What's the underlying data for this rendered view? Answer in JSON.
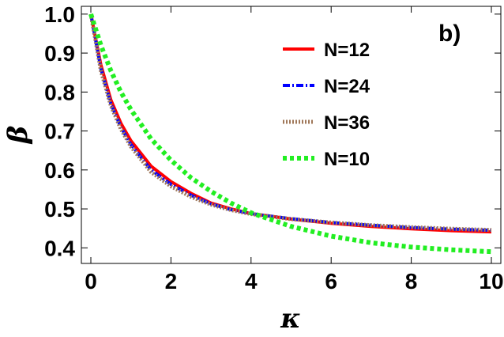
{
  "chart_data": {
    "type": "line",
    "panel_label": "b)",
    "xlabel": "κ",
    "ylabel": "β",
    "xlim": [
      0,
      10
    ],
    "ylim": [
      0.36,
      1.02
    ],
    "x_ticks": [
      0,
      2,
      4,
      6,
      8,
      10
    ],
    "x_tick_labels": [
      "0",
      "2",
      "4",
      "6",
      "8",
      "10"
    ],
    "y_ticks": [
      0.4,
      0.5,
      0.6,
      0.7,
      0.8,
      0.9,
      1.0
    ],
    "y_tick_labels": [
      "0.4",
      "0.5",
      "0.6",
      "0.7",
      "0.8",
      "0.9",
      "1.0"
    ],
    "grid": false,
    "legend_position": "top-right",
    "x": [
      0,
      0.25,
      0.5,
      0.75,
      1,
      1.5,
      2,
      2.5,
      3,
      3.5,
      4,
      5,
      6,
      7,
      8,
      9,
      10
    ],
    "series": [
      {
        "name": "N=12",
        "color": "#ff0000",
        "dash": "solid",
        "values": [
          1.0,
          0.87,
          0.78,
          0.72,
          0.675,
          0.61,
          0.57,
          0.54,
          0.515,
          0.5,
          0.488,
          0.474,
          0.463,
          0.455,
          0.449,
          0.444,
          0.441
        ]
      },
      {
        "name": "N=24",
        "color": "#0000ff",
        "dash": "dotdash",
        "values": [
          1.0,
          0.86,
          0.77,
          0.71,
          0.665,
          0.6,
          0.563,
          0.535,
          0.513,
          0.498,
          0.488,
          0.475,
          0.465,
          0.458,
          0.452,
          0.448,
          0.445
        ]
      },
      {
        "name": "N=36",
        "color": "#a0785a",
        "dash": "dotted",
        "values": [
          1.0,
          0.855,
          0.765,
          0.705,
          0.66,
          0.595,
          0.558,
          0.531,
          0.511,
          0.497,
          0.487,
          0.474,
          0.465,
          0.458,
          0.453,
          0.449,
          0.446
        ]
      },
      {
        "name": "N=10",
        "color": "#22ee22",
        "dash": "dashed",
        "values": [
          1.0,
          0.92,
          0.855,
          0.8,
          0.755,
          0.68,
          0.625,
          0.58,
          0.545,
          0.515,
          0.49,
          0.455,
          0.43,
          0.413,
          0.402,
          0.395,
          0.39
        ]
      }
    ]
  }
}
